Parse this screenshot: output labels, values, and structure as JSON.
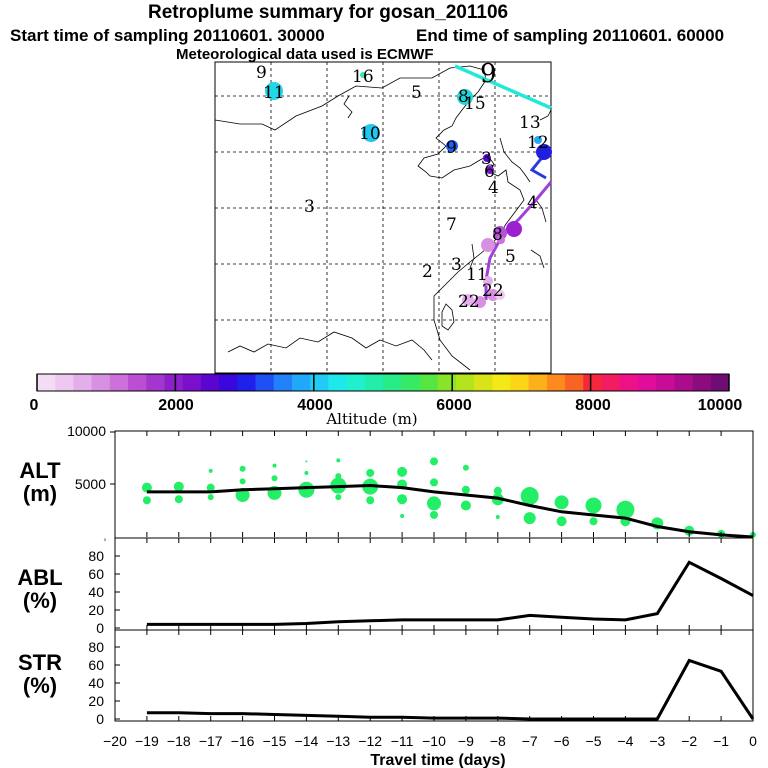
{
  "header": {
    "title": "Retroplume summary for gosan_201106",
    "start": "Start time of sampling 20110601. 30000",
    "end": "End time of sampling 20110601. 60000",
    "met": "Meteorological data used is ECMWF"
  },
  "colorbar": {
    "ticks": [
      "0",
      "2000",
      "4000",
      "6000",
      "8000",
      "10000"
    ],
    "label": "Altitude (m)",
    "colors": [
      "#f4dcf4",
      "#eec8f0",
      "#e4aeea",
      "#d890e2",
      "#cc70da",
      "#bc4ed4",
      "#a436d0",
      "#8e20cc",
      "#7a10cc",
      "#5a06d0",
      "#3a08dc",
      "#2020ec",
      "#2050f4",
      "#2280f8",
      "#22a8f8",
      "#20ccf4",
      "#1ee8ec",
      "#20f0d0",
      "#22eeaa",
      "#28ec88",
      "#36ea66",
      "#56e642",
      "#88e428",
      "#b4e41c",
      "#d8e418",
      "#f4e816",
      "#fcd418",
      "#fcb01c",
      "#fc8a1e",
      "#f86424",
      "#f4283c",
      "#f41c60",
      "#ee1088",
      "#e00c9c",
      "#c80c98",
      "#ac0c8c",
      "#8c0c80",
      "#700c74"
    ]
  },
  "map": {
    "labels": [
      {
        "t": "9",
        "c": "#000"
      },
      {
        "t": "16",
        "c": "#000"
      },
      {
        "t": "5",
        "c": "#000"
      },
      {
        "t": "9",
        "c": "#000"
      },
      {
        "t": "11",
        "c": "#000"
      },
      {
        "t": "8",
        "c": "#000"
      },
      {
        "t": "15",
        "c": "#000"
      },
      {
        "t": "13",
        "c": "#000"
      },
      {
        "t": "10",
        "c": "#000"
      },
      {
        "t": "9",
        "c": "#000"
      },
      {
        "t": "12",
        "c": "#000"
      },
      {
        "t": "3",
        "c": "#000"
      },
      {
        "t": "6",
        "c": "#000"
      },
      {
        "t": "4",
        "c": "#000"
      },
      {
        "t": "4",
        "c": "#000"
      },
      {
        "t": "7",
        "c": "#000"
      },
      {
        "t": "3",
        "c": "#000"
      },
      {
        "t": "8",
        "c": "#000"
      },
      {
        "t": "5",
        "c": "#000"
      },
      {
        "t": "2",
        "c": "#000"
      },
      {
        "t": "3",
        "c": "#000"
      },
      {
        "t": "11",
        "c": "#000"
      },
      {
        "t": "22",
        "c": "#000"
      },
      {
        "t": "22",
        "c": "#000"
      }
    ]
  },
  "chart_data": [
    {
      "type": "scatter+line",
      "panel": "ALT",
      "ylabel": "ALT (m)",
      "ylim": [
        0,
        10000
      ],
      "yticks": [
        "0",
        "5000",
        "10000"
      ],
      "x": [
        -19,
        -18,
        -17,
        -16,
        -15,
        -14,
        -13,
        -12,
        -11,
        -10,
        -9,
        -8,
        -7,
        -6,
        -5,
        -4,
        -3,
        -2,
        -1,
        0
      ],
      "line": [
        4300,
        4300,
        4300,
        4500,
        4600,
        4700,
        4800,
        4900,
        4700,
        4300,
        4000,
        3700,
        3000,
        2400,
        2100,
        1800,
        1000,
        500,
        200,
        0
      ],
      "points": [
        {
          "x": -19,
          "y": 4700,
          "r": 5
        },
        {
          "x": -19,
          "y": 3500,
          "r": 4
        },
        {
          "x": -18,
          "y": 4800,
          "r": 5
        },
        {
          "x": -18,
          "y": 3600,
          "r": 4
        },
        {
          "x": -17,
          "y": 6300,
          "r": 2
        },
        {
          "x": -17,
          "y": 4700,
          "r": 4
        },
        {
          "x": -17,
          "y": 3800,
          "r": 3
        },
        {
          "x": -16,
          "y": 6500,
          "r": 3
        },
        {
          "x": -16,
          "y": 5300,
          "r": 3
        },
        {
          "x": -16,
          "y": 4000,
          "r": 7
        },
        {
          "x": -15,
          "y": 6800,
          "r": 2
        },
        {
          "x": -15,
          "y": 5600,
          "r": 3
        },
        {
          "x": -15,
          "y": 4200,
          "r": 7
        },
        {
          "x": -14,
          "y": 7200,
          "r": 1
        },
        {
          "x": -14,
          "y": 6100,
          "r": 2
        },
        {
          "x": -14,
          "y": 4500,
          "r": 8
        },
        {
          "x": -13,
          "y": 7300,
          "r": 2
        },
        {
          "x": -13,
          "y": 5800,
          "r": 3
        },
        {
          "x": -13,
          "y": 4900,
          "r": 8
        },
        {
          "x": -13,
          "y": 3800,
          "r": 3
        },
        {
          "x": -12,
          "y": 6100,
          "r": 4
        },
        {
          "x": -12,
          "y": 4800,
          "r": 8
        },
        {
          "x": -12,
          "y": 3500,
          "r": 4
        },
        {
          "x": -11,
          "y": 6200,
          "r": 5
        },
        {
          "x": -11,
          "y": 5000,
          "r": 5
        },
        {
          "x": -11,
          "y": 3600,
          "r": 5
        },
        {
          "x": -11,
          "y": 2000,
          "r": 2
        },
        {
          "x": -10,
          "y": 7200,
          "r": 4
        },
        {
          "x": -10,
          "y": 5200,
          "r": 4
        },
        {
          "x": -10,
          "y": 3200,
          "r": 7
        },
        {
          "x": -10,
          "y": 2100,
          "r": 4
        },
        {
          "x": -9,
          "y": 6600,
          "r": 3
        },
        {
          "x": -9,
          "y": 4500,
          "r": 4
        },
        {
          "x": -9,
          "y": 3000,
          "r": 5
        },
        {
          "x": -8,
          "y": 4400,
          "r": 4
        },
        {
          "x": -8,
          "y": 3600,
          "r": 6
        },
        {
          "x": -8,
          "y": 1900,
          "r": 2
        },
        {
          "x": -7,
          "y": 3900,
          "r": 9
        },
        {
          "x": -7,
          "y": 1800,
          "r": 6
        },
        {
          "x": -6,
          "y": 3300,
          "r": 7
        },
        {
          "x": -6,
          "y": 1500,
          "r": 5
        },
        {
          "x": -5,
          "y": 3000,
          "r": 8
        },
        {
          "x": -5,
          "y": 1500,
          "r": 4
        },
        {
          "x": -4,
          "y": 2600,
          "r": 9
        },
        {
          "x": -4,
          "y": 1500,
          "r": 5
        },
        {
          "x": -3,
          "y": 1300,
          "r": 6
        },
        {
          "x": -2,
          "y": 600,
          "r": 5
        },
        {
          "x": -1,
          "y": 300,
          "r": 4
        },
        {
          "x": 0,
          "y": 200,
          "r": 3
        }
      ]
    },
    {
      "type": "line",
      "panel": "ABL",
      "ylabel": "ABL (%)",
      "ylim": [
        0,
        90
      ],
      "yticks": [
        "0",
        "20",
        "40",
        "60",
        "80"
      ],
      "x": [
        -19,
        -18,
        -17,
        -16,
        -15,
        -14,
        -13,
        -12,
        -11,
        -10,
        -9,
        -8,
        -7,
        -6,
        -5,
        -4,
        -3,
        -2,
        -1,
        0
      ],
      "values": [
        4,
        4,
        4,
        4,
        4,
        5,
        7,
        8,
        9,
        9,
        9,
        9,
        14,
        12,
        10,
        9,
        16,
        73,
        55,
        36
      ]
    },
    {
      "type": "line",
      "panel": "STR",
      "ylabel": "STR (%)",
      "ylim": [
        0,
        90
      ],
      "yticks": [
        "0",
        "20",
        "40",
        "60",
        "80"
      ],
      "x": [
        -19,
        -18,
        -17,
        -16,
        -15,
        -14,
        -13,
        -12,
        -11,
        -10,
        -9,
        -8,
        -7,
        -6,
        -5,
        -4,
        -3,
        -2,
        -1,
        0
      ],
      "values": [
        7,
        7,
        6,
        6,
        5,
        4,
        3,
        2,
        2,
        1,
        1,
        1,
        0,
        0,
        0,
        0,
        0,
        65,
        53,
        0
      ]
    },
    {
      "type": "axis",
      "xlabel": "Travel time (days)",
      "xticks": [
        "−20",
        "−19",
        "−18",
        "−17",
        "−16",
        "−15",
        "−14",
        "−13",
        "−12",
        "−11",
        "−10",
        "−9",
        "−8",
        "−7",
        "−6",
        "−5",
        "−4",
        "−3",
        "−2",
        "−1",
        "0"
      ]
    }
  ]
}
